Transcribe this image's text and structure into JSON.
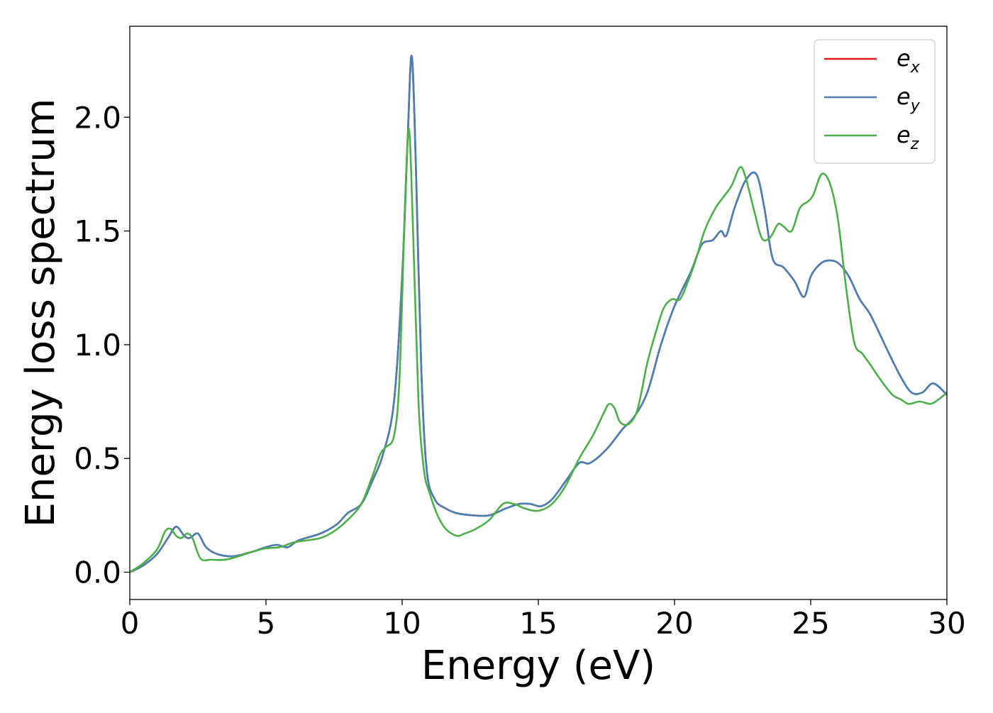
{
  "chart_data": {
    "type": "line",
    "title": "",
    "xlabel": "Energy (eV)",
    "ylabel": "Energy loss spectrum",
    "xlim": [
      0,
      30
    ],
    "ylim": [
      -0.12,
      2.4
    ],
    "xticks": [
      0,
      5,
      10,
      15,
      20,
      25,
      30
    ],
    "xtick_labels": [
      "0",
      "5",
      "10",
      "15",
      "20",
      "25",
      "30"
    ],
    "yticks": [
      0,
      0.5,
      1.0,
      1.5,
      2.0
    ],
    "ytick_labels": [
      "0.0",
      "0.5",
      "1.0",
      "1.5",
      "2.0"
    ],
    "grid": false,
    "legend_position": "top-right",
    "series": [
      {
        "name": "e",
        "subscript": "x",
        "color": "#e41a1c",
        "x": [
          0,
          0.5,
          1.0,
          1.4,
          1.7,
          2.0,
          2.2,
          2.5,
          2.8,
          3.2,
          3.8,
          4.5,
          5.0,
          5.4,
          5.8,
          6.2,
          7.0,
          7.6,
          8.0,
          8.5,
          8.9,
          9.3,
          9.7,
          10.0,
          10.2,
          10.35,
          10.5,
          10.7,
          10.9,
          11.2,
          11.6,
          12.0,
          12.6,
          13.2,
          13.8,
          14.3,
          14.7,
          15.1,
          15.5,
          16.0,
          16.5,
          16.9,
          17.5,
          18.1,
          18.5,
          19.0,
          19.5,
          20.0,
          20.6,
          21.0,
          21.4,
          21.7,
          21.9,
          22.2,
          22.6,
          23.0,
          23.3,
          23.6,
          24.0,
          24.4,
          24.75,
          25.0,
          25.3,
          25.6,
          26.0,
          26.4,
          26.8,
          27.2,
          27.8,
          28.3,
          28.7,
          29.1,
          29.5,
          30.0
        ],
        "values": [
          0.0,
          0.03,
          0.08,
          0.15,
          0.2,
          0.16,
          0.15,
          0.17,
          0.11,
          0.08,
          0.07,
          0.09,
          0.11,
          0.12,
          0.11,
          0.14,
          0.17,
          0.21,
          0.26,
          0.3,
          0.4,
          0.52,
          0.75,
          1.3,
          1.9,
          2.27,
          1.8,
          0.9,
          0.45,
          0.32,
          0.28,
          0.26,
          0.25,
          0.25,
          0.28,
          0.3,
          0.3,
          0.29,
          0.32,
          0.4,
          0.48,
          0.48,
          0.54,
          0.63,
          0.68,
          0.79,
          1.0,
          1.17,
          1.32,
          1.44,
          1.46,
          1.5,
          1.48,
          1.6,
          1.72,
          1.75,
          1.6,
          1.38,
          1.34,
          1.28,
          1.21,
          1.3,
          1.35,
          1.37,
          1.36,
          1.3,
          1.2,
          1.13,
          0.98,
          0.86,
          0.79,
          0.79,
          0.83,
          0.78
        ]
      },
      {
        "name": "e",
        "subscript": "y",
        "color": "#4a7fb5",
        "x": [
          0,
          0.5,
          1.0,
          1.4,
          1.7,
          2.0,
          2.2,
          2.5,
          2.8,
          3.2,
          3.8,
          4.5,
          5.0,
          5.4,
          5.8,
          6.2,
          7.0,
          7.6,
          8.0,
          8.5,
          8.9,
          9.3,
          9.7,
          10.0,
          10.2,
          10.35,
          10.5,
          10.7,
          10.9,
          11.2,
          11.6,
          12.0,
          12.6,
          13.2,
          13.8,
          14.3,
          14.7,
          15.1,
          15.5,
          16.0,
          16.5,
          16.9,
          17.5,
          18.1,
          18.5,
          19.0,
          19.5,
          20.0,
          20.6,
          21.0,
          21.4,
          21.7,
          21.9,
          22.2,
          22.6,
          23.0,
          23.3,
          23.6,
          24.0,
          24.4,
          24.75,
          25.0,
          25.3,
          25.6,
          26.0,
          26.4,
          26.8,
          27.2,
          27.8,
          28.3,
          28.7,
          29.1,
          29.5,
          30.0
        ],
        "values": [
          0.0,
          0.03,
          0.08,
          0.15,
          0.2,
          0.16,
          0.15,
          0.17,
          0.11,
          0.08,
          0.07,
          0.09,
          0.11,
          0.12,
          0.11,
          0.14,
          0.17,
          0.21,
          0.26,
          0.3,
          0.4,
          0.52,
          0.75,
          1.3,
          1.9,
          2.27,
          1.8,
          0.9,
          0.45,
          0.32,
          0.28,
          0.26,
          0.25,
          0.25,
          0.28,
          0.3,
          0.3,
          0.29,
          0.32,
          0.4,
          0.48,
          0.48,
          0.54,
          0.63,
          0.68,
          0.79,
          1.0,
          1.17,
          1.32,
          1.44,
          1.46,
          1.5,
          1.48,
          1.6,
          1.72,
          1.75,
          1.6,
          1.38,
          1.34,
          1.28,
          1.21,
          1.3,
          1.35,
          1.37,
          1.36,
          1.3,
          1.2,
          1.13,
          0.98,
          0.86,
          0.79,
          0.79,
          0.83,
          0.78
        ]
      },
      {
        "name": "e",
        "subscript": "z",
        "color": "#4daf4a",
        "x": [
          0,
          0.5,
          1.0,
          1.3,
          1.5,
          1.7,
          1.9,
          2.1,
          2.3,
          2.6,
          3.0,
          3.5,
          4.0,
          4.5,
          5.0,
          5.5,
          6.0,
          6.5,
          7.0,
          7.5,
          8.0,
          8.5,
          8.9,
          9.2,
          9.4,
          9.7,
          9.9,
          10.1,
          10.25,
          10.4,
          10.6,
          10.8,
          11.0,
          11.3,
          11.6,
          12.0,
          12.3,
          12.7,
          13.2,
          13.7,
          14.1,
          14.5,
          15.0,
          15.5,
          16.0,
          16.5,
          17.0,
          17.4,
          17.6,
          17.8,
          18.0,
          18.3,
          18.6,
          18.8,
          19.0,
          19.3,
          19.6,
          19.9,
          20.2,
          20.5,
          20.8,
          21.1,
          21.5,
          21.8,
          22.1,
          22.4,
          22.6,
          22.9,
          23.2,
          23.5,
          23.8,
          24.0,
          24.3,
          24.6,
          24.9,
          25.1,
          25.4,
          25.7,
          26.0,
          26.3,
          26.6,
          26.9,
          27.2,
          27.6,
          28.0,
          28.3,
          28.6,
          29.0,
          29.4,
          29.7,
          30.0
        ],
        "values": [
          0.0,
          0.04,
          0.1,
          0.18,
          0.19,
          0.16,
          0.15,
          0.17,
          0.15,
          0.06,
          0.055,
          0.055,
          0.07,
          0.09,
          0.105,
          0.11,
          0.13,
          0.14,
          0.15,
          0.18,
          0.23,
          0.3,
          0.42,
          0.52,
          0.55,
          0.6,
          0.85,
          1.6,
          1.95,
          1.5,
          0.75,
          0.45,
          0.35,
          0.25,
          0.19,
          0.16,
          0.17,
          0.19,
          0.23,
          0.3,
          0.3,
          0.28,
          0.27,
          0.3,
          0.38,
          0.5,
          0.6,
          0.7,
          0.74,
          0.72,
          0.66,
          0.65,
          0.7,
          0.8,
          0.92,
          1.05,
          1.16,
          1.2,
          1.2,
          1.28,
          1.38,
          1.5,
          1.6,
          1.65,
          1.7,
          1.78,
          1.74,
          1.6,
          1.47,
          1.47,
          1.53,
          1.52,
          1.5,
          1.6,
          1.63,
          1.66,
          1.75,
          1.71,
          1.55,
          1.25,
          1.01,
          0.96,
          0.91,
          0.84,
          0.78,
          0.76,
          0.74,
          0.75,
          0.74,
          0.76,
          0.79
        ]
      }
    ]
  }
}
